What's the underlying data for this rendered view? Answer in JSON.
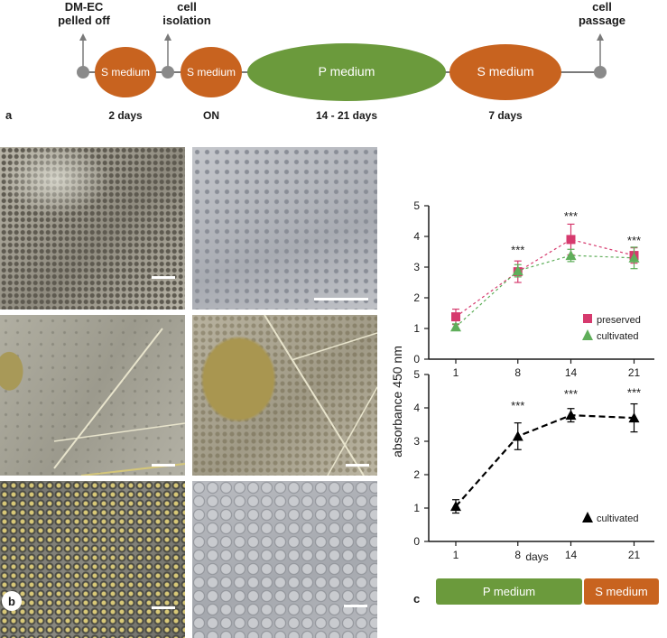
{
  "panel_a": {
    "label": "a",
    "events": {
      "dmec": [
        "DM-EC",
        "pelled off"
      ],
      "isolation": [
        "cell",
        "isolation"
      ],
      "passage": [
        "cell",
        "passage"
      ]
    },
    "stages": [
      {
        "name": "S medium",
        "duration": "2 days",
        "color": "#c8631f"
      },
      {
        "name": "S medium",
        "duration": "ON",
        "color": "#c8631f"
      },
      {
        "name": "P medium",
        "duration": "14 - 21 days",
        "color": "#6b9a3c"
      },
      {
        "name": "S medium",
        "duration": "7 days",
        "color": "#c8631f"
      }
    ]
  },
  "panel_b": {
    "label": "b"
  },
  "panel_c": {
    "label": "c",
    "ylabel": "absorbance 450 nm",
    "xlabel": "days",
    "bar": [
      {
        "label": "P medium",
        "color": "#6b9a3c"
      },
      {
        "label": "S medium",
        "color": "#c8631f"
      }
    ]
  },
  "chart_data": [
    {
      "type": "line",
      "x": [
        1,
        8,
        14,
        21
      ],
      "ylim": [
        0,
        5
      ],
      "yticks": [
        0,
        1,
        2,
        3,
        4,
        5
      ],
      "legend_position": "right",
      "series": [
        {
          "name": "preserved",
          "color": "#d63a6e",
          "marker": "square",
          "values": [
            1.38,
            2.85,
            3.9,
            3.38
          ],
          "err": [
            0.25,
            0.35,
            0.5,
            0.25
          ]
        },
        {
          "name": "cultivated",
          "color": "#5fae5a",
          "marker": "triangle",
          "values": [
            1.05,
            2.88,
            3.38,
            3.3
          ],
          "err": [
            0.1,
            0.2,
            0.2,
            0.35
          ]
        }
      ],
      "annotations": [
        {
          "x": 8,
          "y": 3.55,
          "text": "***"
        },
        {
          "x": 14,
          "y": 4.65,
          "text": "***"
        },
        {
          "x": 21,
          "y": 3.85,
          "text": "***"
        }
      ]
    },
    {
      "type": "line",
      "x": [
        1,
        8,
        14,
        21
      ],
      "ylim": [
        0,
        5
      ],
      "yticks": [
        0,
        1,
        2,
        3,
        4,
        5
      ],
      "legend_position": "bottom-right",
      "series": [
        {
          "name": "cultivated",
          "color": "#000000",
          "marker": "triangle",
          "values": [
            1.05,
            3.15,
            3.78,
            3.7
          ],
          "err": [
            0.2,
            0.4,
            0.2,
            0.42
          ]
        }
      ],
      "annotations": [
        {
          "x": 8,
          "y": 4.05,
          "text": "***"
        },
        {
          "x": 14,
          "y": 4.4,
          "text": "***"
        },
        {
          "x": 21,
          "y": 4.45,
          "text": "***"
        }
      ]
    }
  ]
}
